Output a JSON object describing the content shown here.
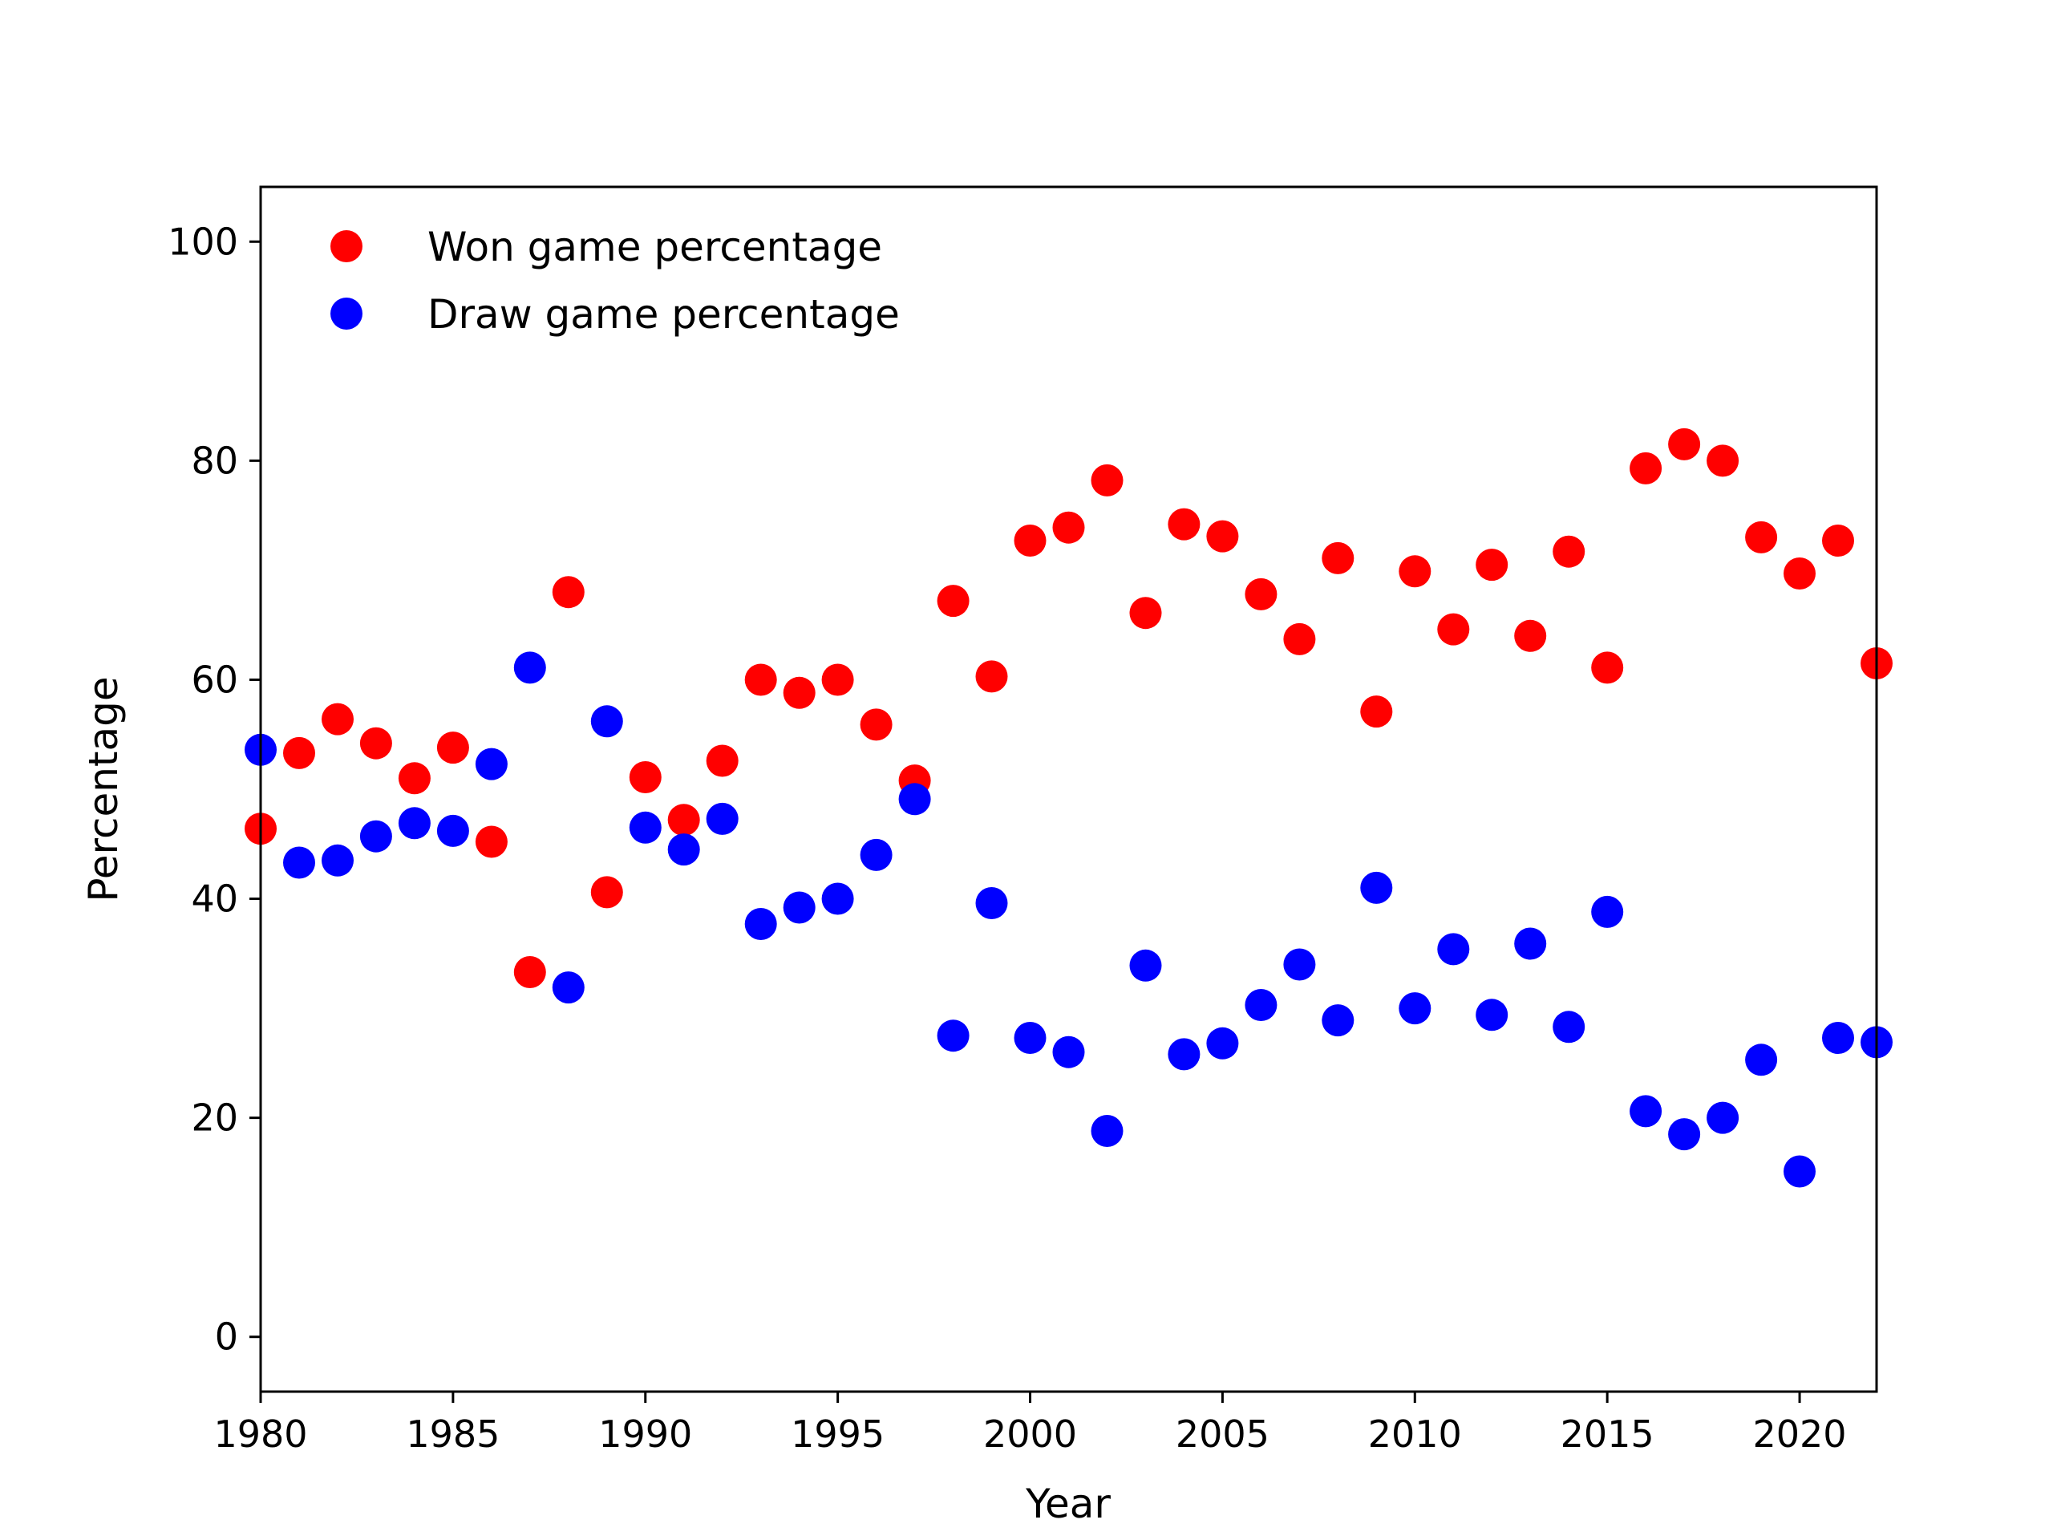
{
  "chart_data": {
    "type": "scatter",
    "title": "",
    "xlabel": "Year",
    "ylabel": "Percentage",
    "xlim": [
      1980,
      2022
    ],
    "ylim": [
      -5,
      105
    ],
    "xticks": [
      1980,
      1985,
      1990,
      1995,
      2000,
      2005,
      2010,
      2015,
      2020
    ],
    "yticks": [
      0,
      20,
      40,
      60,
      80,
      100
    ],
    "grid": false,
    "legend_position": "top-left",
    "x": [
      1980,
      1981,
      1982,
      1983,
      1984,
      1985,
      1986,
      1987,
      1988,
      1989,
      1990,
      1991,
      1992,
      1993,
      1994,
      1995,
      1996,
      1997,
      1998,
      1999,
      2000,
      2001,
      2002,
      2003,
      2004,
      2005,
      2006,
      2007,
      2008,
      2009,
      2010,
      2011,
      2012,
      2013,
      2014,
      2015,
      2016,
      2017,
      2018,
      2019,
      2020,
      2021,
      2022
    ],
    "series": [
      {
        "name": "Won game percentage",
        "color": "#ff0000",
        "values": [
          46.4,
          53.3,
          56.4,
          54.2,
          51.0,
          53.8,
          45.2,
          33.3,
          68.0,
          40.6,
          51.1,
          47.2,
          52.6,
          60.0,
          58.8,
          60.0,
          55.9,
          50.8,
          67.2,
          60.3,
          72.7,
          73.9,
          78.2,
          66.1,
          74.2,
          73.1,
          67.8,
          63.7,
          71.1,
          57.1,
          69.9,
          64.6,
          70.5,
          64.0,
          71.7,
          61.1,
          79.3,
          81.5,
          80.0,
          73.0,
          69.7,
          72.7,
          61.5
        ]
      },
      {
        "name": "Draw game percentage",
        "color": "#0000ff",
        "values": [
          53.6,
          43.3,
          43.5,
          45.7,
          46.9,
          46.2,
          52.3,
          61.1,
          31.9,
          56.2,
          46.5,
          44.5,
          47.3,
          37.7,
          39.2,
          40.0,
          44.0,
          49.1,
          27.5,
          39.6,
          27.3,
          26.0,
          18.8,
          33.9,
          25.8,
          26.8,
          30.3,
          34.0,
          28.9,
          41.0,
          30.0,
          35.4,
          29.4,
          35.9,
          28.3,
          38.8,
          20.6,
          18.5,
          20.0,
          25.3,
          15.1,
          27.3,
          26.9
        ]
      }
    ]
  }
}
